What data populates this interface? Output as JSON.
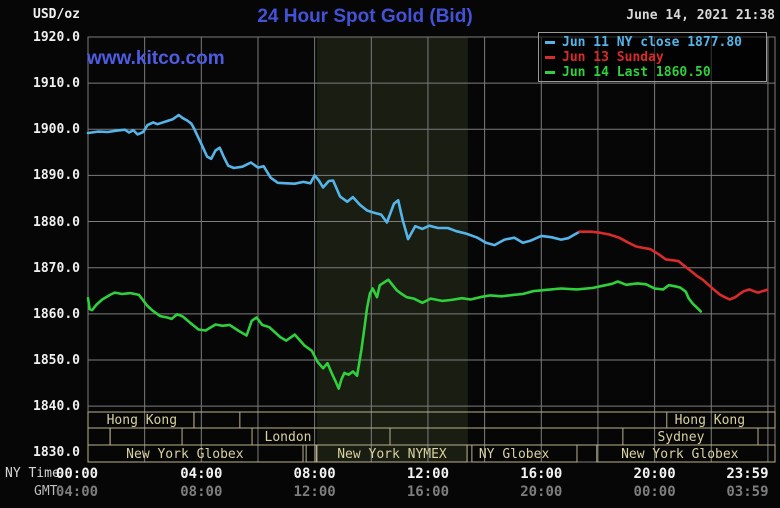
{
  "header": {
    "unit_label": "USD/oz",
    "title": "24 Hour Spot Gold (Bid)",
    "datetime": "June 14, 2021 21:38",
    "watermark": "www.kitco.com"
  },
  "legend": {
    "items": [
      {
        "label": "Jun 11 NY close 1877.80",
        "color": "#55b5e8"
      },
      {
        "label": "Jun 13 Sunday",
        "color": "#d92b2b"
      },
      {
        "label": "Jun 14 Last 1860.50",
        "color": "#2fd03c"
      }
    ]
  },
  "axes": {
    "ny_caption": "NY Time",
    "gmt_caption": "GMT",
    "y_ticks": [
      {
        "label": "1920.0",
        "value": 1920
      },
      {
        "label": "1910.0",
        "value": 1910
      },
      {
        "label": "1900.0",
        "value": 1900
      },
      {
        "label": "1890.0",
        "value": 1890
      },
      {
        "label": "1880.0",
        "value": 1880
      },
      {
        "label": "1870.0",
        "value": 1870
      },
      {
        "label": "1860.0",
        "value": 1860
      },
      {
        "label": "1850.0",
        "value": 1850
      },
      {
        "label": "1840.0",
        "value": 1840
      },
      {
        "label": "1830.0",
        "value": 1830
      }
    ],
    "ny_times": [
      {
        "label": "00:00",
        "t": 0
      },
      {
        "label": "04:00",
        "t": 4
      },
      {
        "label": "08:00",
        "t": 8
      },
      {
        "label": "12:00",
        "t": 12
      },
      {
        "label": "16:00",
        "t": 16
      },
      {
        "label": "20:00",
        "t": 20
      },
      {
        "label": "23:59",
        "t": 23.983
      }
    ],
    "gmt_times": [
      {
        "label": "04:00",
        "t": 0
      },
      {
        "label": "08:00",
        "t": 4
      },
      {
        "label": "12:00",
        "t": 8
      },
      {
        "label": "16:00",
        "t": 12
      },
      {
        "label": "20:00",
        "t": 16
      },
      {
        "label": "00:00",
        "t": 20
      },
      {
        "label": "03:59",
        "t": 23.983
      }
    ]
  },
  "chart_data": {
    "type": "line",
    "title": "24 Hour Spot Gold (Bid)",
    "ylabel": "USD/oz",
    "ylim": [
      1830,
      1920
    ],
    "y_tick_step": 10,
    "x_range_hours": [
      0,
      23.983
    ],
    "grid": true,
    "shaded_band_hours": [
      8.08,
      13.41
    ],
    "band_color": "#191d12",
    "grid_color": "#7c7c7c",
    "sessions": {
      "border_color": "#b9b18a",
      "label_color": "#d9d1a0",
      "rows": [
        {
          "boxes": [
            {
              "t0": 0.0,
              "t1": 3.74,
              "label": "Hong Kong",
              "label_t": 1.9
            },
            {
              "t0": 3.74,
              "t1": 5.36,
              "label": "",
              "label_t": 0
            },
            {
              "t0": 20.43,
              "t1": 24.25,
              "label": "Hong Kong",
              "label_t": 21.95
            }
          ]
        },
        {
          "boxes": [
            {
              "t0": 0.0,
              "t1": 0.78,
              "label": "",
              "label_t": 0
            },
            {
              "t0": 0.78,
              "t1": 3.32,
              "label": "",
              "label_t": 0
            },
            {
              "t0": 5.79,
              "t1": 10.66,
              "label": "London",
              "label_t": 7.06
            },
            {
              "t0": 18.88,
              "t1": 23.65,
              "label": "Sydney",
              "label_t": 20.93
            }
          ]
        },
        {
          "boxes": [
            {
              "t0": 0.0,
              "t1": 7.59,
              "label": "New York Globex",
              "label_t": 3.42
            },
            {
              "t0": 7.7,
              "t1": 8.05,
              "label": "",
              "label_t": 0
            },
            {
              "t0": 8.08,
              "t1": 13.38,
              "label": "New York NYMEX",
              "label_t": 10.73
            },
            {
              "t0": 13.55,
              "t1": 17.26,
              "label": "NY Globex",
              "label_t": 15.04
            },
            {
              "t0": 17.96,
              "t1": 24.25,
              "label": "New York Globex",
              "label_t": 20.89
            }
          ]
        }
      ]
    },
    "series": [
      {
        "name": "Jun 11 NY close 1877.80",
        "color": "#55b5e8",
        "points": [
          [
            0,
            1899.2
          ],
          [
            0.35,
            1899.5
          ],
          [
            0.7,
            1899.4
          ],
          [
            1.0,
            1899.7
          ],
          [
            1.3,
            1899.9
          ],
          [
            1.45,
            1899.3
          ],
          [
            1.6,
            1899.8
          ],
          [
            1.75,
            1898.9
          ],
          [
            1.95,
            1899.4
          ],
          [
            2.1,
            1900.9
          ],
          [
            2.3,
            1901.5
          ],
          [
            2.45,
            1901.1
          ],
          [
            2.6,
            1901.4
          ],
          [
            2.8,
            1901.8
          ],
          [
            3.0,
            1902.2
          ],
          [
            3.2,
            1903.1
          ],
          [
            3.35,
            1902.4
          ],
          [
            3.5,
            1901.9
          ],
          [
            3.65,
            1901.2
          ],
          [
            3.75,
            1900.1
          ],
          [
            3.9,
            1898.1
          ],
          [
            4.05,
            1896.2
          ],
          [
            4.2,
            1894.1
          ],
          [
            4.35,
            1893.6
          ],
          [
            4.5,
            1895.4
          ],
          [
            4.65,
            1896.0
          ],
          [
            4.8,
            1893.9
          ],
          [
            4.95,
            1892.1
          ],
          [
            5.15,
            1891.6
          ],
          [
            5.45,
            1891.9
          ],
          [
            5.75,
            1892.8
          ],
          [
            6.0,
            1891.7
          ],
          [
            6.2,
            1892.0
          ],
          [
            6.45,
            1889.5
          ],
          [
            6.7,
            1888.4
          ],
          [
            7.0,
            1888.3
          ],
          [
            7.3,
            1888.2
          ],
          [
            7.6,
            1888.6
          ],
          [
            7.85,
            1888.3
          ],
          [
            8.0,
            1890.0
          ],
          [
            8.15,
            1888.9
          ],
          [
            8.3,
            1887.4
          ],
          [
            8.5,
            1888.8
          ],
          [
            8.65,
            1888.9
          ],
          [
            8.9,
            1885.4
          ],
          [
            9.15,
            1884.3
          ],
          [
            9.35,
            1885.3
          ],
          [
            9.6,
            1883.6
          ],
          [
            9.85,
            1882.4
          ],
          [
            10.1,
            1881.9
          ],
          [
            10.35,
            1881.5
          ],
          [
            10.55,
            1879.8
          ],
          [
            10.8,
            1883.9
          ],
          [
            10.95,
            1884.6
          ],
          [
            11.1,
            1880.5
          ],
          [
            11.3,
            1876.2
          ],
          [
            11.55,
            1879.0
          ],
          [
            11.8,
            1878.4
          ],
          [
            12.05,
            1879.1
          ],
          [
            12.35,
            1878.6
          ],
          [
            12.7,
            1878.6
          ],
          [
            13.0,
            1877.9
          ],
          [
            13.35,
            1877.4
          ],
          [
            13.75,
            1876.5
          ],
          [
            14.05,
            1875.4
          ],
          [
            14.35,
            1874.9
          ],
          [
            14.7,
            1876.1
          ],
          [
            15.05,
            1876.5
          ],
          [
            15.35,
            1875.4
          ],
          [
            15.6,
            1875.8
          ],
          [
            16.0,
            1876.9
          ],
          [
            16.35,
            1876.6
          ],
          [
            16.7,
            1876.1
          ],
          [
            16.95,
            1876.4
          ],
          [
            17.15,
            1877.1
          ],
          [
            17.35,
            1877.8
          ]
        ]
      },
      {
        "name": "Jun 13 Sunday",
        "color": "#d92b2b",
        "points": [
          [
            17.35,
            1877.8
          ],
          [
            17.75,
            1877.8
          ],
          [
            18.05,
            1877.6
          ],
          [
            18.4,
            1877.2
          ],
          [
            18.75,
            1876.5
          ],
          [
            19.05,
            1875.5
          ],
          [
            19.35,
            1874.6
          ],
          [
            19.6,
            1874.3
          ],
          [
            19.85,
            1874.0
          ],
          [
            20.15,
            1872.9
          ],
          [
            20.4,
            1871.8
          ],
          [
            20.65,
            1871.6
          ],
          [
            20.85,
            1871.4
          ],
          [
            21.05,
            1870.4
          ],
          [
            21.3,
            1869.2
          ],
          [
            21.5,
            1868.2
          ],
          [
            21.7,
            1867.4
          ],
          [
            21.9,
            1866.3
          ],
          [
            22.1,
            1865.2
          ],
          [
            22.3,
            1864.2
          ],
          [
            22.45,
            1863.7
          ],
          [
            22.65,
            1863.1
          ],
          [
            22.85,
            1863.6
          ],
          [
            23.0,
            1864.3
          ],
          [
            23.15,
            1864.9
          ],
          [
            23.35,
            1865.3
          ],
          [
            23.5,
            1864.9
          ],
          [
            23.65,
            1864.6
          ],
          [
            23.8,
            1864.9
          ],
          [
            23.98,
            1865.2
          ]
        ]
      },
      {
        "name": "Jun 14 Last 1860.50",
        "color": "#2fd03c",
        "points": [
          [
            0,
            1863.4
          ],
          [
            0.06,
            1861.0
          ],
          [
            0.15,
            1860.8
          ],
          [
            0.3,
            1862.0
          ],
          [
            0.5,
            1863.1
          ],
          [
            0.8,
            1864.2
          ],
          [
            0.95,
            1864.6
          ],
          [
            1.2,
            1864.3
          ],
          [
            1.5,
            1864.5
          ],
          [
            1.8,
            1864.1
          ],
          [
            2.1,
            1861.7
          ],
          [
            2.3,
            1860.6
          ],
          [
            2.55,
            1859.5
          ],
          [
            2.8,
            1859.2
          ],
          [
            2.95,
            1858.9
          ],
          [
            3.15,
            1859.9
          ],
          [
            3.35,
            1859.4
          ],
          [
            3.6,
            1858.1
          ],
          [
            3.9,
            1856.6
          ],
          [
            4.15,
            1856.4
          ],
          [
            4.5,
            1857.7
          ],
          [
            4.75,
            1857.4
          ],
          [
            5.0,
            1857.6
          ],
          [
            5.3,
            1856.4
          ],
          [
            5.6,
            1855.3
          ],
          [
            5.78,
            1858.5
          ],
          [
            5.95,
            1859.2
          ],
          [
            6.15,
            1857.6
          ],
          [
            6.4,
            1857.1
          ],
          [
            6.8,
            1854.9
          ],
          [
            7.0,
            1854.2
          ],
          [
            7.3,
            1855.5
          ],
          [
            7.65,
            1853.1
          ],
          [
            7.9,
            1852.0
          ],
          [
            8.1,
            1849.6
          ],
          [
            8.3,
            1848.2
          ],
          [
            8.45,
            1849.3
          ],
          [
            8.6,
            1847.2
          ],
          [
            8.75,
            1845.2
          ],
          [
            8.85,
            1843.8
          ],
          [
            8.95,
            1845.9
          ],
          [
            9.05,
            1847.2
          ],
          [
            9.2,
            1846.8
          ],
          [
            9.35,
            1847.5
          ],
          [
            9.5,
            1846.6
          ],
          [
            9.65,
            1852.2
          ],
          [
            9.75,
            1856.6
          ],
          [
            9.85,
            1861.3
          ],
          [
            9.95,
            1864.4
          ],
          [
            10.05,
            1865.5
          ],
          [
            10.2,
            1863.6
          ],
          [
            10.3,
            1866.2
          ],
          [
            10.5,
            1867.0
          ],
          [
            10.6,
            1867.4
          ],
          [
            10.9,
            1865.1
          ],
          [
            11.05,
            1864.4
          ],
          [
            11.25,
            1863.6
          ],
          [
            11.5,
            1863.3
          ],
          [
            11.8,
            1862.4
          ],
          [
            12.1,
            1863.3
          ],
          [
            12.5,
            1862.8
          ],
          [
            12.8,
            1863.0
          ],
          [
            13.2,
            1863.4
          ],
          [
            13.5,
            1863.1
          ],
          [
            13.9,
            1863.7
          ],
          [
            14.2,
            1864.0
          ],
          [
            14.6,
            1863.8
          ],
          [
            15.0,
            1864.1
          ],
          [
            15.35,
            1864.3
          ],
          [
            15.7,
            1864.9
          ],
          [
            16.2,
            1865.2
          ],
          [
            16.7,
            1865.5
          ],
          [
            17.25,
            1865.3
          ],
          [
            17.8,
            1865.6
          ],
          [
            18.1,
            1866.0
          ],
          [
            18.5,
            1866.5
          ],
          [
            18.7,
            1867.0
          ],
          [
            19.0,
            1866.3
          ],
          [
            19.4,
            1866.6
          ],
          [
            19.7,
            1866.4
          ],
          [
            20.0,
            1865.5
          ],
          [
            20.3,
            1865.3
          ],
          [
            20.5,
            1866.2
          ],
          [
            20.7,
            1866.0
          ],
          [
            20.9,
            1865.7
          ],
          [
            21.1,
            1864.8
          ],
          [
            21.2,
            1863.4
          ],
          [
            21.35,
            1862.2
          ],
          [
            21.5,
            1861.3
          ],
          [
            21.63,
            1860.5
          ]
        ]
      }
    ]
  }
}
